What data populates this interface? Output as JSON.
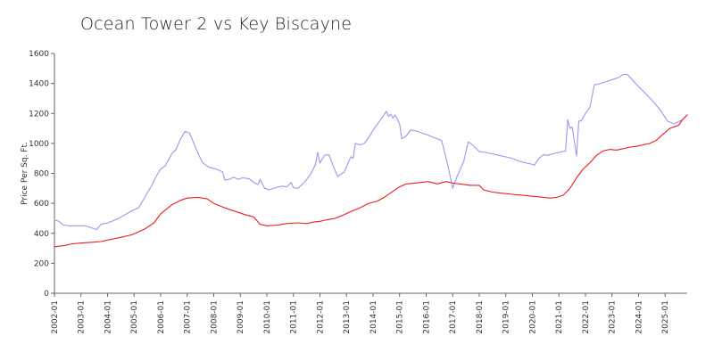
{
  "chart_data": {
    "type": "line",
    "title": "Ocean Tower 2 vs Key Biscayne",
    "ylabel": "Price Per Sq. Ft.",
    "xlabel": "",
    "ylim": [
      0,
      1600
    ],
    "y_ticks": [
      0,
      200,
      400,
      600,
      800,
      1000,
      1200,
      1400,
      1600
    ],
    "x_range": [
      "2002-01",
      "2025-11"
    ],
    "x_tick_labels": [
      "2002-01",
      "2003-01",
      "2004-01",
      "2005-01",
      "2006-01",
      "2007-01",
      "2008-01",
      "2009-01",
      "2010-01",
      "2011-01",
      "2012-01",
      "2013-01",
      "2014-01",
      "2015-01",
      "2016-01",
      "2017-01",
      "2018-01",
      "2019-01",
      "2020-01",
      "2021-01",
      "2022-01",
      "2023-01",
      "2024-01",
      "2025-01"
    ],
    "grid": false,
    "legend": "none",
    "colors": {
      "series_blue": "#9999ee",
      "series_red": "#ee1c1c",
      "axis": "#666666"
    },
    "series": [
      {
        "color": "#9999ee",
        "points": [
          [
            "2002-01",
            490
          ],
          [
            "2002-03",
            480
          ],
          [
            "2002-05",
            455
          ],
          [
            "2002-08",
            450
          ],
          [
            "2002-12",
            450
          ],
          [
            "2003-03",
            450
          ],
          [
            "2003-06",
            435
          ],
          [
            "2003-08",
            425
          ],
          [
            "2003-10",
            460
          ],
          [
            "2004-01",
            470
          ],
          [
            "2004-03",
            480
          ],
          [
            "2004-06",
            500
          ],
          [
            "2004-09",
            525
          ],
          [
            "2004-12",
            550
          ],
          [
            "2005-03",
            570
          ],
          [
            "2005-05",
            620
          ],
          [
            "2005-07",
            670
          ],
          [
            "2005-09",
            720
          ],
          [
            "2005-11",
            780
          ],
          [
            "2006-01",
            830
          ],
          [
            "2006-03",
            850
          ],
          [
            "2006-06",
            930
          ],
          [
            "2006-08",
            960
          ],
          [
            "2006-10",
            1030
          ],
          [
            "2006-12",
            1080
          ],
          [
            "2007-02",
            1070
          ],
          [
            "2007-04",
            1000
          ],
          [
            "2007-06",
            930
          ],
          [
            "2007-08",
            870
          ],
          [
            "2007-11",
            840
          ],
          [
            "2008-02",
            830
          ],
          [
            "2008-05",
            810
          ],
          [
            "2008-06",
            755
          ],
          [
            "2008-08",
            760
          ],
          [
            "2008-10",
            775
          ],
          [
            "2008-12",
            760
          ],
          [
            "2009-02",
            770
          ],
          [
            "2009-05",
            765
          ],
          [
            "2009-07",
            740
          ],
          [
            "2009-09",
            725
          ],
          [
            "2009-10",
            760
          ],
          [
            "2009-12",
            700
          ],
          [
            "2010-02",
            690
          ],
          [
            "2010-05",
            705
          ],
          [
            "2010-08",
            715
          ],
          [
            "2010-10",
            710
          ],
          [
            "2010-12",
            740
          ],
          [
            "2011-01",
            705
          ],
          [
            "2011-03",
            700
          ],
          [
            "2011-06",
            740
          ],
          [
            "2011-09",
            800
          ],
          [
            "2011-11",
            860
          ],
          [
            "2011-12",
            940
          ],
          [
            "2012-01",
            870
          ],
          [
            "2012-03",
            920
          ],
          [
            "2012-05",
            925
          ],
          [
            "2012-07",
            850
          ],
          [
            "2012-09",
            780
          ],
          [
            "2012-12",
            810
          ],
          [
            "2013-02",
            880
          ],
          [
            "2013-03",
            910
          ],
          [
            "2013-04",
            900
          ],
          [
            "2013-05",
            1000
          ],
          [
            "2013-07",
            990
          ],
          [
            "2013-09",
            1000
          ],
          [
            "2013-11",
            1040
          ],
          [
            "2014-02",
            1110
          ],
          [
            "2014-04",
            1150
          ],
          [
            "2014-06",
            1190
          ],
          [
            "2014-07",
            1215
          ],
          [
            "2014-08",
            1180
          ],
          [
            "2014-09",
            1195
          ],
          [
            "2014-10",
            1170
          ],
          [
            "2014-11",
            1190
          ],
          [
            "2015-01",
            1130
          ],
          [
            "2015-02",
            1030
          ],
          [
            "2015-04",
            1050
          ],
          [
            "2015-06",
            1090
          ],
          [
            "2015-09",
            1080
          ],
          [
            "2016-01",
            1060
          ],
          [
            "2016-06",
            1030
          ],
          [
            "2016-08",
            1020
          ],
          [
            "2016-11",
            840
          ],
          [
            "2017-01",
            700
          ],
          [
            "2017-03",
            780
          ],
          [
            "2017-06",
            880
          ],
          [
            "2017-08",
            1010
          ],
          [
            "2017-10",
            990
          ],
          [
            "2018-01",
            945
          ],
          [
            "2018-04",
            940
          ],
          [
            "2018-07",
            930
          ],
          [
            "2018-10",
            920
          ],
          [
            "2019-01",
            910
          ],
          [
            "2019-04",
            900
          ],
          [
            "2019-07",
            880
          ],
          [
            "2019-10",
            870
          ],
          [
            "2020-01",
            860
          ],
          [
            "2020-02",
            855
          ],
          [
            "2020-04",
            900
          ],
          [
            "2020-06",
            925
          ],
          [
            "2020-08",
            920
          ],
          [
            "2020-10",
            930
          ],
          [
            "2021-01",
            940
          ],
          [
            "2021-04",
            950
          ],
          [
            "2021-05",
            1160
          ],
          [
            "2021-06",
            1100
          ],
          [
            "2021-07",
            1110
          ],
          [
            "2021-09",
            915
          ],
          [
            "2021-10",
            1150
          ],
          [
            "2021-11",
            1150
          ],
          [
            "2022-01",
            1200
          ],
          [
            "2022-03",
            1240
          ],
          [
            "2022-05",
            1390
          ],
          [
            "2022-08",
            1400
          ],
          [
            "2022-12",
            1420
          ],
          [
            "2023-04",
            1440
          ],
          [
            "2023-06",
            1460
          ],
          [
            "2023-08",
            1460
          ],
          [
            "2023-11",
            1410
          ],
          [
            "2024-03",
            1350
          ],
          [
            "2024-07",
            1290
          ],
          [
            "2024-11",
            1220
          ],
          [
            "2025-02",
            1150
          ],
          [
            "2025-05",
            1130
          ],
          [
            "2025-09",
            1160
          ],
          [
            "2025-11",
            1190
          ]
        ]
      },
      {
        "color": "#ee1c1c",
        "points": [
          [
            "2002-01",
            310
          ],
          [
            "2002-06",
            320
          ],
          [
            "2002-09",
            330
          ],
          [
            "2003-01",
            335
          ],
          [
            "2003-06",
            340
          ],
          [
            "2003-10",
            345
          ],
          [
            "2004-01",
            355
          ],
          [
            "2004-06",
            370
          ],
          [
            "2004-12",
            390
          ],
          [
            "2005-06",
            430
          ],
          [
            "2005-10",
            470
          ],
          [
            "2006-01",
            530
          ],
          [
            "2006-06",
            590
          ],
          [
            "2006-10",
            620
          ],
          [
            "2007-01",
            635
          ],
          [
            "2007-06",
            640
          ],
          [
            "2007-10",
            630
          ],
          [
            "2008-01",
            600
          ],
          [
            "2008-06",
            570
          ],
          [
            "2008-12",
            540
          ],
          [
            "2009-03",
            525
          ],
          [
            "2009-07",
            510
          ],
          [
            "2009-10",
            460
          ],
          [
            "2010-01",
            450
          ],
          [
            "2010-06",
            455
          ],
          [
            "2010-10",
            465
          ],
          [
            "2011-03",
            470
          ],
          [
            "2011-07",
            465
          ],
          [
            "2011-10",
            475
          ],
          [
            "2012-01",
            480
          ],
          [
            "2012-04",
            490
          ],
          [
            "2012-08",
            500
          ],
          [
            "2012-12",
            525
          ],
          [
            "2013-03",
            545
          ],
          [
            "2013-07",
            570
          ],
          [
            "2013-11",
            600
          ],
          [
            "2014-03",
            615
          ],
          [
            "2014-06",
            640
          ],
          [
            "2014-10",
            680
          ],
          [
            "2015-01",
            710
          ],
          [
            "2015-04",
            730
          ],
          [
            "2015-08",
            735
          ],
          [
            "2015-11",
            740
          ],
          [
            "2016-02",
            745
          ],
          [
            "2016-06",
            730
          ],
          [
            "2016-10",
            745
          ],
          [
            "2017-01",
            735
          ],
          [
            "2017-04",
            730
          ],
          [
            "2017-09",
            720
          ],
          [
            "2018-01",
            720
          ],
          [
            "2018-03",
            690
          ],
          [
            "2018-07",
            675
          ],
          [
            "2018-10",
            670
          ],
          [
            "2019-01",
            665
          ],
          [
            "2019-04",
            660
          ],
          [
            "2019-08",
            655
          ],
          [
            "2019-11",
            650
          ],
          [
            "2020-03",
            645
          ],
          [
            "2020-06",
            640
          ],
          [
            "2020-09",
            635
          ],
          [
            "2020-12",
            640
          ],
          [
            "2021-03",
            655
          ],
          [
            "2021-06",
            700
          ],
          [
            "2021-09",
            770
          ],
          [
            "2021-12",
            830
          ],
          [
            "2022-03",
            870
          ],
          [
            "2022-06",
            920
          ],
          [
            "2022-09",
            950
          ],
          [
            "2022-12",
            960
          ],
          [
            "2023-03",
            955
          ],
          [
            "2023-06",
            965
          ],
          [
            "2023-09",
            975
          ],
          [
            "2023-12",
            980
          ],
          [
            "2024-03",
            990
          ],
          [
            "2024-06",
            1000
          ],
          [
            "2024-09",
            1020
          ],
          [
            "2024-12",
            1060
          ],
          [
            "2025-03",
            1100
          ],
          [
            "2025-05",
            1110
          ],
          [
            "2025-07",
            1120
          ],
          [
            "2025-09",
            1160
          ],
          [
            "2025-11",
            1190
          ]
        ]
      }
    ]
  }
}
